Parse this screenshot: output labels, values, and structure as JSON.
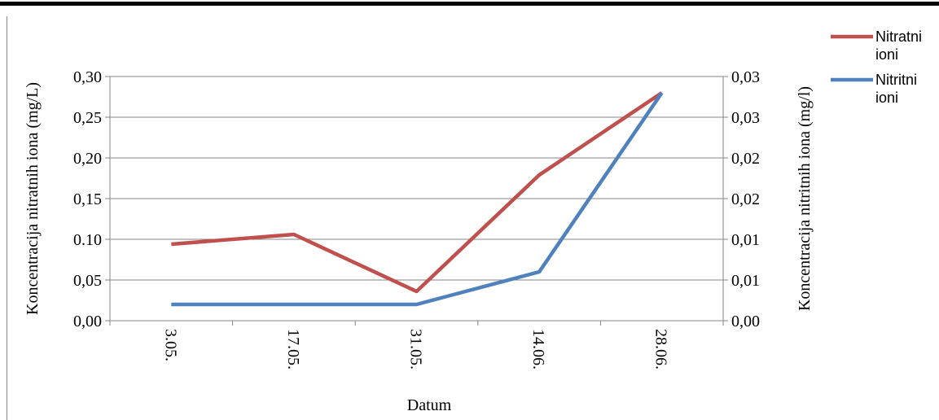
{
  "chart_data": {
    "type": "line",
    "x_label": "Datum",
    "y_label": "Koncentracija nitratnih iona (mg/L)",
    "y2_label": "Koncentracija nitritnih iona (mg/l)",
    "categories": [
      "3.05.",
      "17.05.",
      "31.05.",
      "14.06.",
      "28.06."
    ],
    "series": [
      {
        "name": "Nitratni ioni",
        "color": "#c0504d",
        "values": [
          0.094,
          0.106,
          0.036,
          0.179,
          0.28
        ]
      },
      {
        "name": "Nitritni ioni",
        "color": "#4f81bd",
        "axis": "y2",
        "values": [
          0.002,
          0.002,
          0.002,
          0.006,
          0.028
        ]
      }
    ],
    "ylim": [
      0,
      0.3
    ],
    "yticks": [
      {
        "value": 0,
        "label": "0,00"
      },
      {
        "value": 0.05,
        "label": "0,05"
      },
      {
        "value": 0.1,
        "label": "0.10"
      },
      {
        "value": 0.15,
        "label": "0,15"
      },
      {
        "value": 0.2,
        "label": "0,20"
      },
      {
        "value": 0.25,
        "label": "0,25"
      },
      {
        "value": 0.3,
        "label": "0,30"
      }
    ],
    "y2lim": [
      0,
      0.03
    ],
    "y2ticks": [
      {
        "value": 0,
        "label": "0,00"
      },
      {
        "value": 0.005,
        "label": "0,01"
      },
      {
        "value": 0.01,
        "label": "0,01"
      },
      {
        "value": 0.015,
        "label": "0,02"
      },
      {
        "value": 0.02,
        "label": "0,02"
      },
      {
        "value": 0.025,
        "label": "0,03"
      },
      {
        "value": 0.03,
        "label": "0,03"
      }
    ],
    "grid": true,
    "legend": "right"
  }
}
